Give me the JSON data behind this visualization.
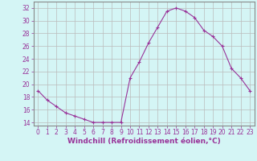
{
  "x": [
    0,
    1,
    2,
    3,
    4,
    5,
    6,
    7,
    8,
    9,
    10,
    11,
    12,
    13,
    14,
    15,
    16,
    17,
    18,
    19,
    20,
    21,
    22,
    23
  ],
  "y": [
    19.0,
    17.5,
    16.5,
    15.5,
    15.0,
    14.5,
    14.0,
    14.0,
    14.0,
    14.0,
    21.0,
    23.5,
    26.5,
    29.0,
    31.5,
    32.0,
    31.5,
    30.5,
    28.5,
    27.5,
    26.0,
    22.5,
    21.0,
    19.0
  ],
  "xlim": [
    -0.5,
    23.5
  ],
  "ylim": [
    13.5,
    33.0
  ],
  "yticks": [
    14,
    16,
    18,
    20,
    22,
    24,
    26,
    28,
    30,
    32
  ],
  "xticks": [
    0,
    1,
    2,
    3,
    4,
    5,
    6,
    7,
    8,
    9,
    10,
    11,
    12,
    13,
    14,
    15,
    16,
    17,
    18,
    19,
    20,
    21,
    22,
    23
  ],
  "xlabel": "Windchill (Refroidissement éolien,°C)",
  "line_color": "#993399",
  "marker_color": "#993399",
  "bg_color": "#d4f5f5",
  "grid_color": "#bbbbbb",
  "spine_color": "#888888",
  "text_color": "#993399",
  "tick_label_color": "#993399",
  "font_size_tick": 5.5,
  "font_size_label": 6.5
}
